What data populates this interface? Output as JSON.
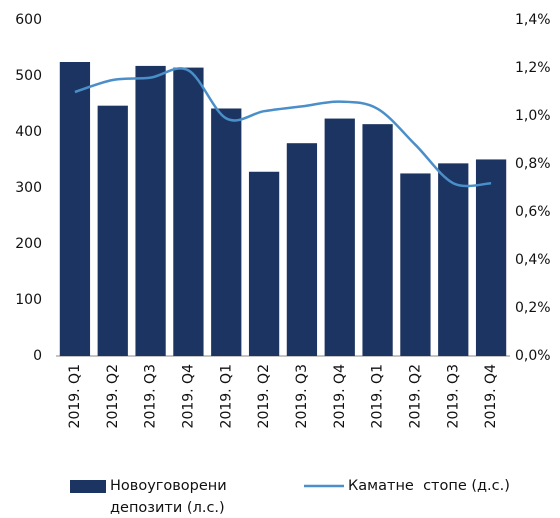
{
  "chart_data": {
    "type": "bar_line",
    "categories": [
      "2019. Q1",
      "2019. Q2",
      "2019. Q3",
      "2019. Q4",
      "2019. Q1",
      "2019. Q2",
      "2019. Q3",
      "2019. Q4",
      "2019. Q1",
      "2019. Q2",
      "2019. Q3",
      "2019. Q4"
    ],
    "series": [
      {
        "name": "Новоуговорени депозити (л.с.)",
        "type": "bar",
        "color": "#1c3461",
        "values": [
          525,
          447,
          518,
          515,
          442,
          329,
          380,
          424,
          414,
          326,
          344,
          351
        ]
      },
      {
        "name": "Каматне  стопе (д.с.)",
        "type": "line",
        "axis": "y2",
        "color": "#4a8fc9",
        "values": [
          1.1,
          1.15,
          1.16,
          1.19,
          0.99,
          1.02,
          1.04,
          1.06,
          1.03,
          0.88,
          0.72,
          0.72
        ]
      }
    ],
    "ylim": [
      0,
      600
    ],
    "yticks": [
      0,
      100,
      200,
      300,
      400,
      500,
      600
    ],
    "y2lim": [
      0,
      1.4
    ],
    "y2ticks": [
      {
        "value": 0,
        "label": "0,0%"
      },
      {
        "value": 0.2,
        "label": "0,2%"
      },
      {
        "value": 0.4,
        "label": "0,4%"
      },
      {
        "value": 0.6,
        "label": "0,6%"
      },
      {
        "value": 0.8,
        "label": "0,8%"
      },
      {
        "value": 1.0,
        "label": "1,0%"
      },
      {
        "value": 1.2,
        "label": "1,2%"
      },
      {
        "value": 1.4,
        "label": "1,4%"
      }
    ]
  }
}
